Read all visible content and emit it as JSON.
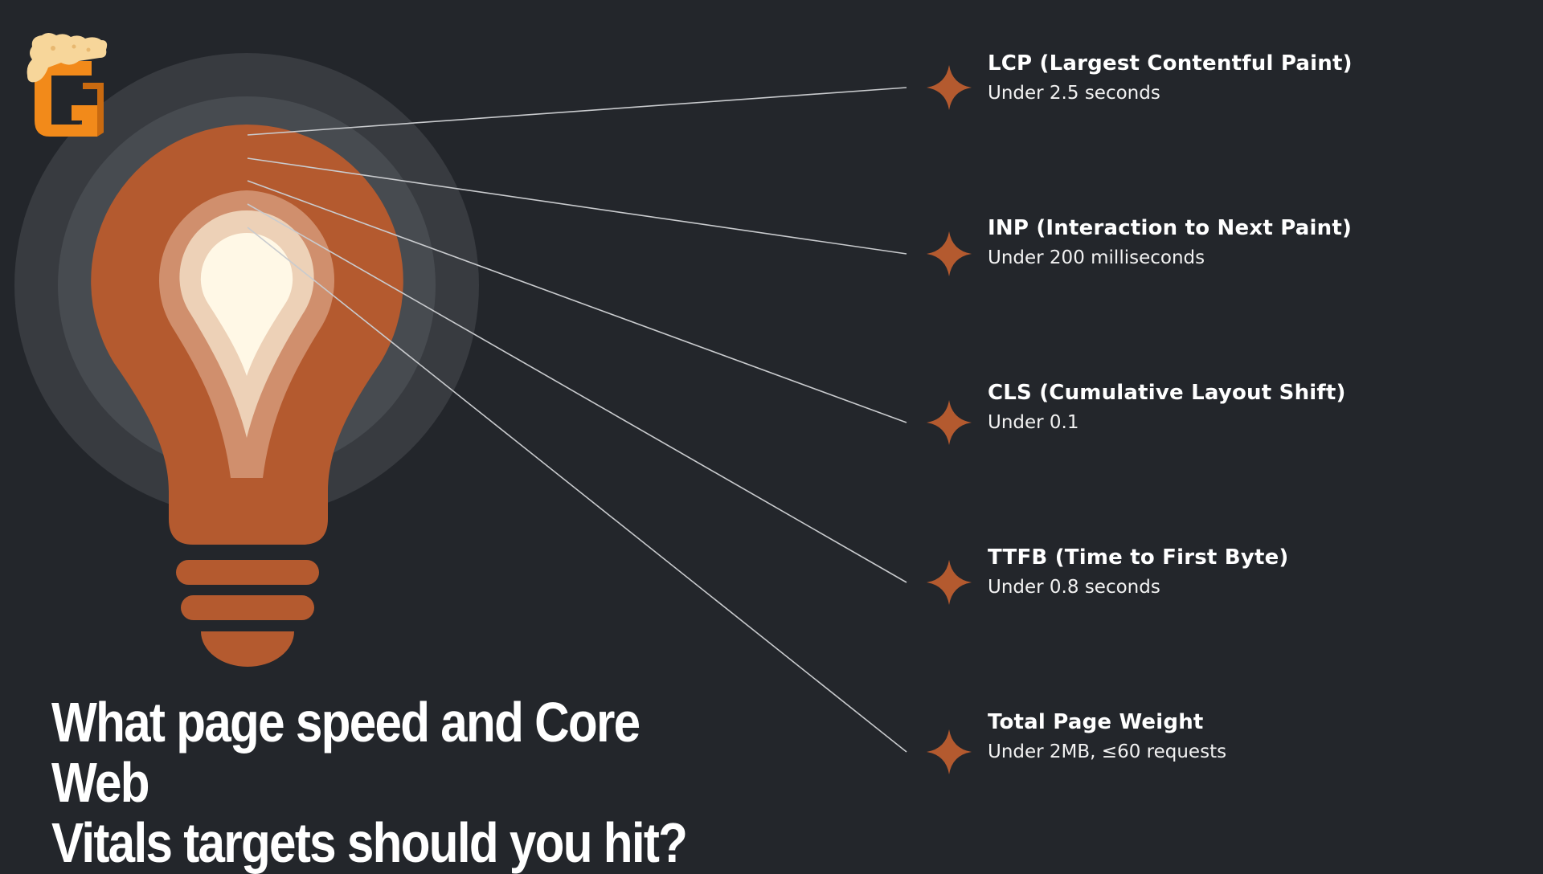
{
  "title": {
    "line1": "What page speed and Core Web",
    "line2": "Vitals targets should you hit?"
  },
  "colors": {
    "background": "#23262b",
    "accent": "#b45a2f",
    "glow_outer": "#383b40",
    "glow_inner": "#474b50",
    "bulb_inner_ring": "#d08f6d",
    "bulb_inner_mid": "#edd1b7",
    "bulb_core": "#fff8e6",
    "logo_orange": "#f28a1a",
    "logo_cream": "#f7d69a",
    "text": "#ffffff"
  },
  "icons": {
    "logo": "g-brand-logo-icon",
    "bulb": "lightbulb-icon",
    "marker": "four-point-star-icon"
  },
  "metrics": [
    {
      "name": "LCP (Largest Contentful Paint)",
      "target": "Under 2.5 seconds"
    },
    {
      "name": "INP (Interaction to Next Paint)",
      "target": "Under 200 milliseconds"
    },
    {
      "name": "CLS (Cumulative Layout Shift)",
      "target": "Under 0.1"
    },
    {
      "name": "TTFB (Time to First Byte)",
      "target": "Under 0.8 seconds"
    },
    {
      "name": "Total Page Weight",
      "target": "Under 2MB, ≤60 requests"
    }
  ]
}
